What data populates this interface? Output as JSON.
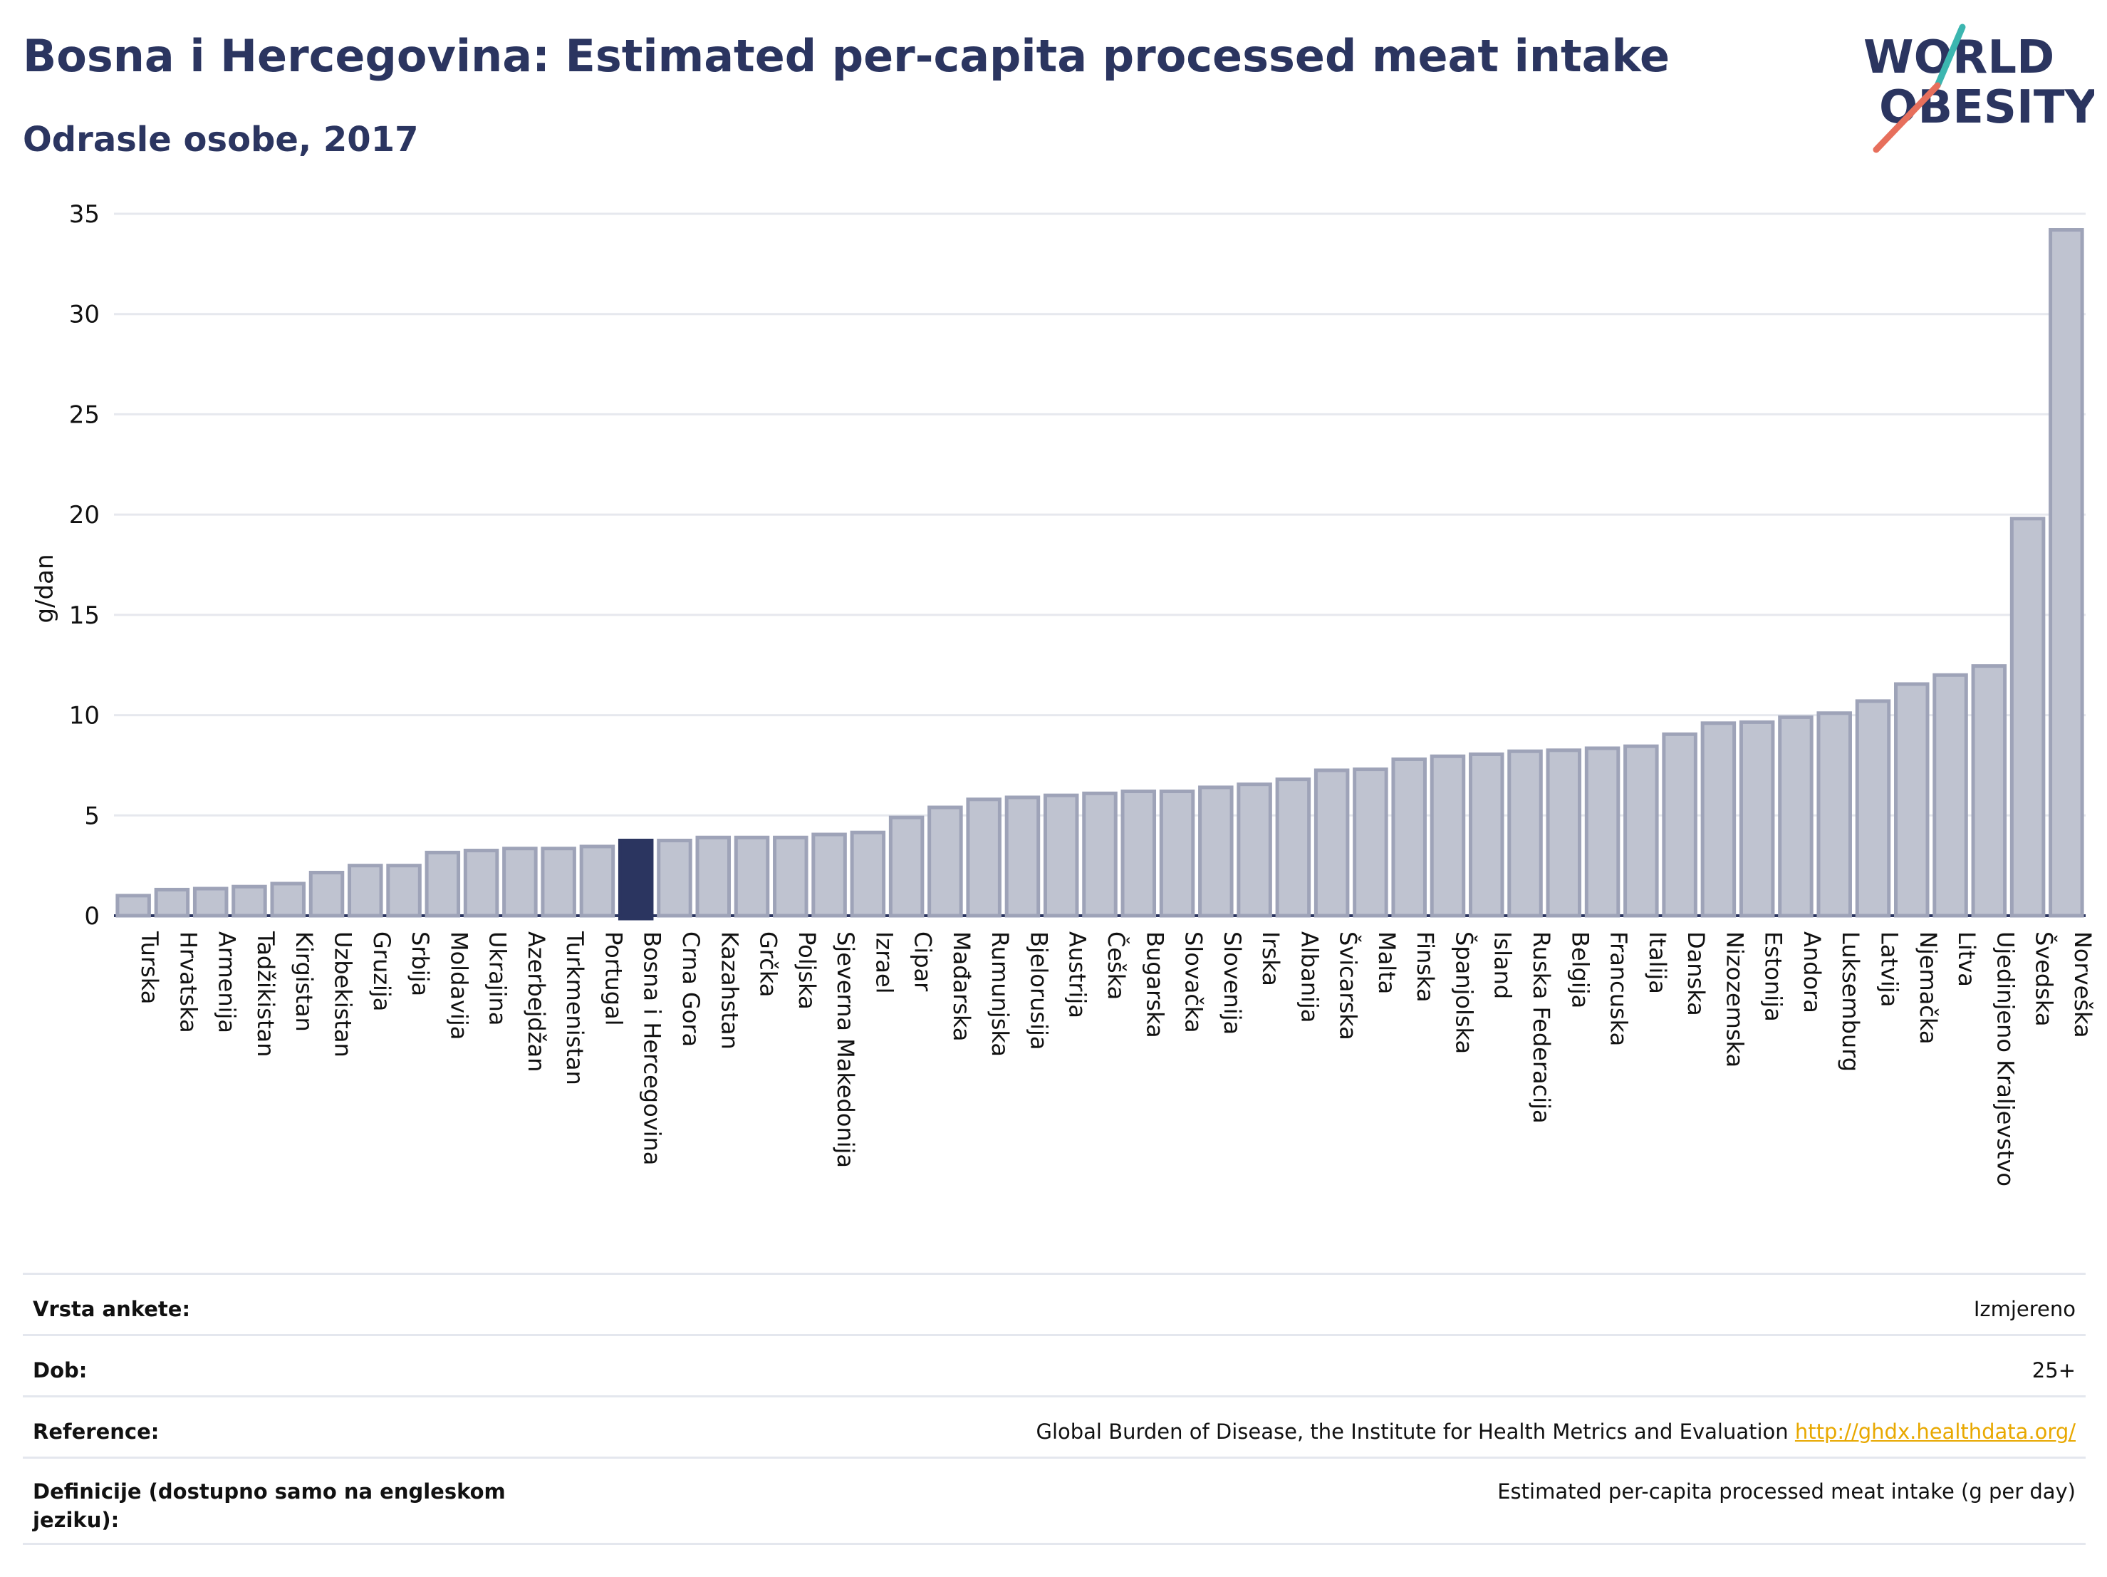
{
  "header": {
    "title": "Bosna i Hercegovina: Estimated per-capita processed meat intake",
    "subtitle": "Odrasle osobe, 2017"
  },
  "logo": {
    "line1": "WORLD",
    "line2": "OBESITY",
    "colors": {
      "text": "#2b3560",
      "slash_teal": "#3cb6b0",
      "slash_red": "#e76f5c"
    }
  },
  "chart_data": {
    "type": "bar",
    "ylabel": "g/dan",
    "ylim": [
      0,
      35
    ],
    "yticks": [
      0,
      5,
      10,
      15,
      20,
      25,
      30,
      35
    ],
    "grid": true,
    "highlight": "Bosna i Hercegovina",
    "colors": {
      "bar": "#bfc3d0",
      "bar_stroke": "#9ea3b8",
      "highlight": "#2b3560",
      "grid": "#e6e8ee"
    },
    "categories": [
      "Turska",
      "Hrvatska",
      "Armenija",
      "Tadžikistan",
      "Kirgistan",
      "Uzbekistan",
      "Gruzija",
      "Srbija",
      "Moldavija",
      "Ukrajina",
      "Azerbejdžan",
      "Turkmenistan",
      "Portugal",
      "Bosna i Hercegovina",
      "Crna Gora",
      "Kazahstan",
      "Grčka",
      "Poljska",
      "Sjeverna Makedonija",
      "Izrael",
      "Cipar",
      "Mađarska",
      "Rumunjska",
      "Bjelorusija",
      "Austrija",
      "Češka",
      "Bugarska",
      "Slovačka",
      "Slovenija",
      "Irska",
      "Albanija",
      "Švicarska",
      "Malta",
      "Finska",
      "Španjolska",
      "Island",
      "Ruska Federacija",
      "Belgija",
      "Francuska",
      "Italija",
      "Danska",
      "Nizozemska",
      "Estonija",
      "Andora",
      "Luksemburg",
      "Latvija",
      "Njemačka",
      "Litva",
      "Ujedinjeno Kraljevstvo",
      "Švedska",
      "Norveška"
    ],
    "values": [
      1.0,
      1.3,
      1.35,
      1.45,
      1.6,
      2.15,
      2.5,
      2.5,
      3.15,
      3.25,
      3.35,
      3.35,
      3.45,
      3.75,
      3.75,
      3.9,
      3.9,
      3.9,
      4.05,
      4.15,
      4.9,
      5.4,
      5.8,
      5.9,
      6.0,
      6.1,
      6.2,
      6.2,
      6.4,
      6.55,
      6.8,
      7.25,
      7.3,
      7.8,
      7.95,
      8.05,
      8.2,
      8.25,
      8.35,
      8.45,
      9.05,
      9.6,
      9.65,
      9.9,
      10.1,
      10.7,
      11.55,
      12.0,
      12.45,
      19.8,
      34.2
    ]
  },
  "meta": {
    "rows": [
      {
        "label": "Vrsta ankete:",
        "value": "Izmjereno"
      },
      {
        "label": "Dob:",
        "value": "25+"
      },
      {
        "label": "Reference:",
        "value": "Global Burden of Disease, the Institute for Health Metrics and Evaluation",
        "link": "http://ghdx.healthdata.org/"
      },
      {
        "label": "Definicije (dostupno samo na engleskom jeziku):",
        "value": "Estimated per-capita processed meat intake (g per day)"
      }
    ]
  }
}
